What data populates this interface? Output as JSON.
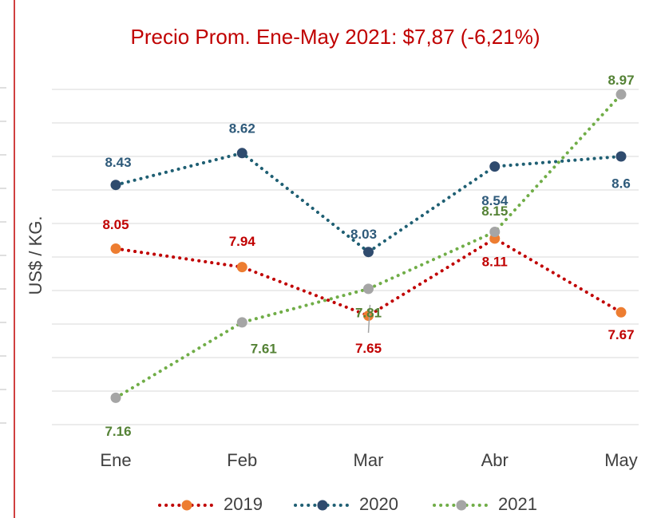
{
  "chart_data": {
    "type": "line",
    "subtitle": "Precio Prom. Ene-May 2021: $7,87 (-6,21%)",
    "y_label": "US$ / KG.",
    "categories": [
      "Ene",
      "Feb",
      "Mar",
      "Abr",
      "May"
    ],
    "series": [
      {
        "name": "2019",
        "color": "#c00000",
        "marker_color": "#ed7d31",
        "label_color": "#c00000",
        "values": [
          8.05,
          7.94,
          7.65,
          8.11,
          7.67
        ]
      },
      {
        "name": "2020",
        "color": "#1f5f73",
        "marker_color": "#2f4b6e",
        "label_color": "#2e5a7a",
        "values": [
          8.43,
          8.62,
          8.03,
          8.54,
          8.6
        ]
      },
      {
        "name": "2021",
        "color": "#70ad47",
        "marker_color": "#a5a5a5",
        "label_color": "#548235",
        "values": [
          7.16,
          7.61,
          7.81,
          8.15,
          8.97
        ]
      }
    ],
    "ylim": [
      7.0,
      9.0
    ],
    "yticks": [
      7.0,
      7.2,
      7.4,
      7.6,
      7.8,
      8.0,
      8.2,
      8.4,
      8.6,
      8.8,
      9.0
    ],
    "grid": true,
    "legend": "bottom"
  }
}
